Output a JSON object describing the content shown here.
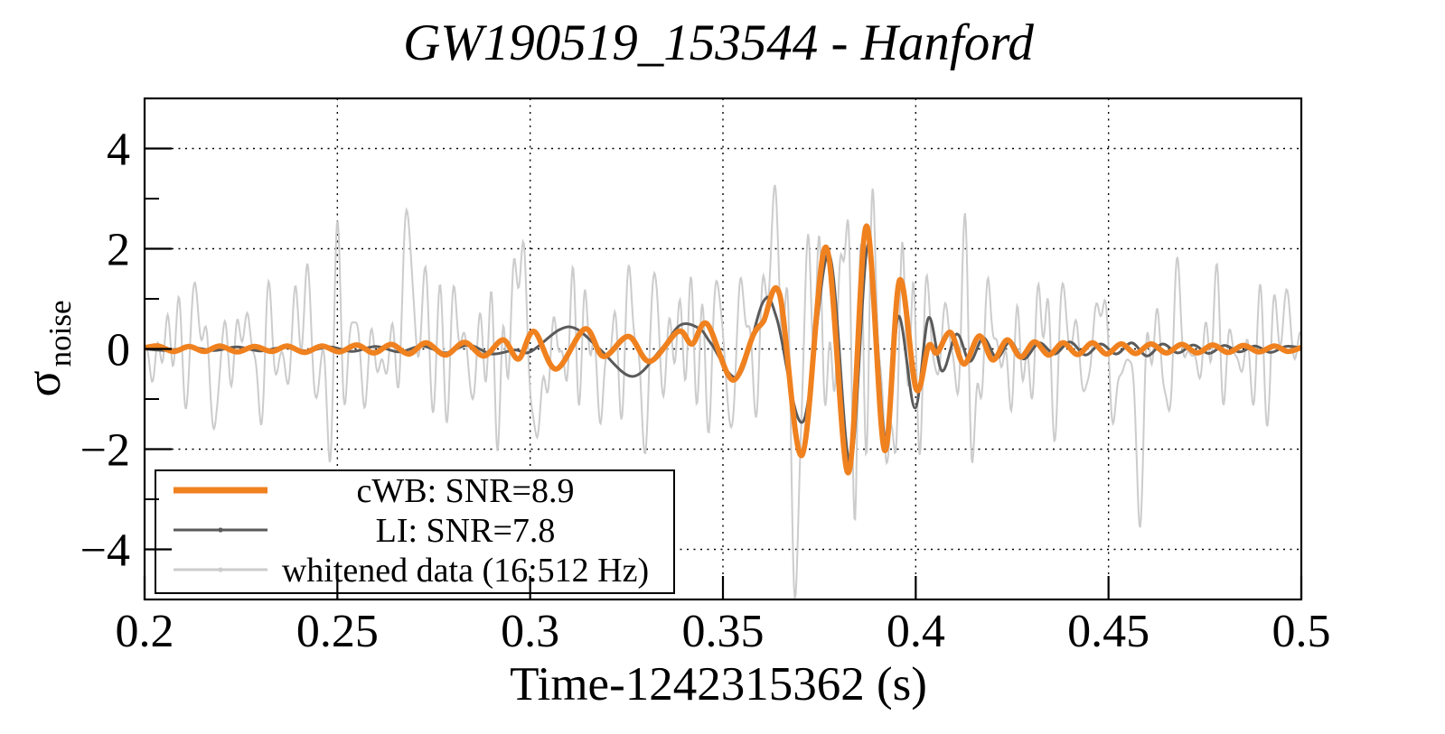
{
  "title": "GW190519_153544 - Hanford",
  "x_axis": {
    "label": "Time-1242315362 (s)",
    "tick_labels": [
      "0.2",
      "0.25",
      "0.3",
      "0.35",
      "0.4",
      "0.45",
      "0.5"
    ],
    "tick_values": [
      0.2,
      0.25,
      0.3,
      0.35,
      0.4,
      0.45,
      0.5
    ],
    "range": [
      0.2,
      0.5
    ]
  },
  "y_axis": {
    "symbol": "σ",
    "subscript": "noise",
    "tick_labels": [
      "4",
      "2",
      "0",
      "−2",
      "−4"
    ],
    "tick_values": [
      4,
      2,
      0,
      -2,
      -4
    ],
    "minor_tick_values": [
      3,
      1,
      -1,
      -3
    ],
    "range": [
      -5,
      5
    ]
  },
  "legend": {
    "position": "bottom-left",
    "entries": [
      {
        "label": "cWB: SNR=8.9",
        "color": "#f0811f",
        "sample_width": 7
      },
      {
        "label": "LI: SNR=7.8",
        "color": "#5a5a5a",
        "sample_width": 3
      },
      {
        "label": "whitened data (16:512 Hz)",
        "color": "#cccccc",
        "sample_width": 3
      }
    ]
  },
  "colors": {
    "background": "#ffffff",
    "frame": "#000000",
    "grid": "#000000",
    "cwb": "#f0811f",
    "li": "#5a5a5a",
    "whitened": "#cccccc"
  },
  "chart_data": {
    "type": "line",
    "title": "GW190519_153544 - Hanford",
    "xlabel": "Time-1242315362 (s)",
    "ylabel": "σ_noise",
    "xlim": [
      0.2,
      0.5
    ],
    "ylim": [
      -5,
      5
    ],
    "grid": "dotted at major ticks, x ticks every 0.05 s, y ticks every 2 sigma, minor y ticks every 1",
    "legend_position": "bottom-left inside plot",
    "series": [
      {
        "name": "whitened data (16:512 Hz)",
        "color": "#cccccc",
        "width": 2,
        "synthetic": true,
        "noise": {
          "seed": 20190519,
          "components": 70,
          "band_hz": [
            28,
            400
          ],
          "sigma": 0.85,
          "envelope": [
            [
              0.2,
              1.0
            ],
            [
              0.345,
              1.0
            ],
            [
              0.356,
              1.35
            ],
            [
              0.364,
              1.85
            ],
            [
              0.371,
              2.0
            ],
            [
              0.379,
              1.75
            ],
            [
              0.39,
              1.55
            ],
            [
              0.4,
              1.25
            ],
            [
              0.413,
              1.0
            ],
            [
              0.5,
              1.0
            ]
          ],
          "features": [
            [
              0.2695,
              1.4,
              0.0018
            ],
            [
              0.2975,
              1.5,
              0.0015
            ],
            [
              0.3018,
              -1.6,
              0.0015
            ],
            [
              0.3602,
              1.8,
              0.0014
            ],
            [
              0.3651,
              1.6,
              0.0012
            ],
            [
              0.3697,
              -2.6,
              0.0016
            ],
            [
              0.3762,
              1.4,
              0.0015
            ],
            [
              0.3878,
              1.2,
              0.0018
            ],
            [
              0.3925,
              -1.2,
              0.0018
            ],
            [
              0.4575,
              -1.6,
              0.002
            ],
            [
              0.4975,
              1.0,
              0.0015
            ]
          ]
        }
      },
      {
        "name": "LI: SNR=7.8",
        "color": "#5a5a5a",
        "width": 3,
        "points": [
          [
            0.2,
            0.0
          ],
          [
            0.206,
            -0.03
          ],
          [
            0.212,
            0.03
          ],
          [
            0.218,
            -0.03
          ],
          [
            0.224,
            0.04
          ],
          [
            0.23,
            -0.04
          ],
          [
            0.236,
            0.03
          ],
          [
            0.242,
            -0.04
          ],
          [
            0.248,
            0.04
          ],
          [
            0.254,
            -0.05
          ],
          [
            0.26,
            0.05
          ],
          [
            0.266,
            -0.06
          ],
          [
            0.272,
            0.06
          ],
          [
            0.278,
            -0.08
          ],
          [
            0.284,
            0.08
          ],
          [
            0.29,
            -0.1
          ],
          [
            0.296,
            -0.02
          ],
          [
            0.3,
            -0.06
          ],
          [
            0.3075,
            0.38
          ],
          [
            0.312,
            0.4
          ],
          [
            0.318,
            0.0
          ],
          [
            0.3265,
            -0.55
          ],
          [
            0.334,
            0.0
          ],
          [
            0.339,
            0.48
          ],
          [
            0.344,
            0.4
          ],
          [
            0.347,
            0.1
          ],
          [
            0.354,
            -0.55
          ],
          [
            0.3605,
            0.95
          ],
          [
            0.364,
            0.6
          ],
          [
            0.3708,
            -1.45
          ],
          [
            0.3775,
            1.9
          ],
          [
            0.383,
            -2.28
          ],
          [
            0.3877,
            2.1
          ],
          [
            0.3921,
            -1.82
          ],
          [
            0.3955,
            0.65
          ],
          [
            0.3998,
            -1.18
          ],
          [
            0.4033,
            0.62
          ],
          [
            0.4068,
            -0.44
          ],
          [
            0.4106,
            0.3
          ],
          [
            0.414,
            -0.25
          ],
          [
            0.4175,
            0.22
          ],
          [
            0.421,
            -0.18
          ],
          [
            0.4245,
            0.15
          ],
          [
            0.428,
            -0.2
          ],
          [
            0.432,
            0.12
          ],
          [
            0.436,
            -0.1
          ],
          [
            0.44,
            0.14
          ],
          [
            0.444,
            -0.12
          ],
          [
            0.448,
            0.1
          ],
          [
            0.452,
            -0.1
          ],
          [
            0.456,
            0.12
          ],
          [
            0.46,
            -0.14
          ],
          [
            0.464,
            0.1
          ],
          [
            0.468,
            -0.08
          ],
          [
            0.472,
            0.08
          ],
          [
            0.476,
            -0.09
          ],
          [
            0.48,
            0.07
          ],
          [
            0.484,
            -0.06
          ],
          [
            0.488,
            0.06
          ],
          [
            0.492,
            -0.07
          ],
          [
            0.496,
            0.05
          ],
          [
            0.5,
            0.02
          ]
        ]
      },
      {
        "name": "cWB: SNR=8.9",
        "color": "#f0811f",
        "width": 6,
        "points": [
          [
            0.2,
            0.02
          ],
          [
            0.2035,
            0.06
          ],
          [
            0.2075,
            -0.05
          ],
          [
            0.2115,
            0.05
          ],
          [
            0.2155,
            -0.05
          ],
          [
            0.2195,
            0.06
          ],
          [
            0.224,
            -0.06
          ],
          [
            0.2285,
            0.05
          ],
          [
            0.233,
            -0.05
          ],
          [
            0.237,
            0.06
          ],
          [
            0.2415,
            -0.07
          ],
          [
            0.246,
            0.06
          ],
          [
            0.2505,
            -0.06
          ],
          [
            0.255,
            0.08
          ],
          [
            0.2595,
            -0.08
          ],
          [
            0.264,
            0.09
          ],
          [
            0.2685,
            -0.1
          ],
          [
            0.273,
            0.12
          ],
          [
            0.278,
            -0.12
          ],
          [
            0.283,
            0.13
          ],
          [
            0.288,
            -0.14
          ],
          [
            0.293,
            0.18
          ],
          [
            0.297,
            -0.2
          ],
          [
            0.301,
            0.35
          ],
          [
            0.3067,
            -0.4
          ],
          [
            0.3142,
            0.4
          ],
          [
            0.319,
            -0.15
          ],
          [
            0.3255,
            0.25
          ],
          [
            0.331,
            -0.25
          ],
          [
            0.3384,
            0.35
          ],
          [
            0.342,
            0.1
          ],
          [
            0.3459,
            0.5
          ],
          [
            0.3525,
            -0.62
          ],
          [
            0.358,
            0.3
          ],
          [
            0.3605,
            0.55
          ],
          [
            0.3647,
            1.09
          ],
          [
            0.3705,
            -2.12
          ],
          [
            0.3767,
            2.03
          ],
          [
            0.3825,
            -2.47
          ],
          [
            0.3872,
            2.45
          ],
          [
            0.3919,
            -2.02
          ],
          [
            0.3958,
            1.37
          ],
          [
            0.4001,
            -0.8
          ],
          [
            0.4033,
            0.06
          ],
          [
            0.4055,
            -0.08
          ],
          [
            0.409,
            0.33
          ],
          [
            0.4125,
            -0.3
          ],
          [
            0.4165,
            0.26
          ],
          [
            0.42,
            -0.22
          ],
          [
            0.4237,
            0.18
          ],
          [
            0.4272,
            -0.16
          ],
          [
            0.4308,
            0.14
          ],
          [
            0.4345,
            -0.12
          ],
          [
            0.4382,
            0.12
          ],
          [
            0.442,
            -0.11
          ],
          [
            0.4458,
            0.12
          ],
          [
            0.4495,
            -0.1
          ],
          [
            0.4533,
            0.1
          ],
          [
            0.457,
            -0.09
          ],
          [
            0.461,
            0.1
          ],
          [
            0.465,
            -0.08
          ],
          [
            0.469,
            0.09
          ],
          [
            0.473,
            -0.08
          ],
          [
            0.477,
            0.08
          ],
          [
            0.481,
            -0.07
          ],
          [
            0.485,
            0.07
          ],
          [
            0.489,
            -0.06
          ],
          [
            0.493,
            0.06
          ],
          [
            0.4965,
            -0.05
          ],
          [
            0.5,
            0.03
          ]
        ]
      }
    ]
  }
}
